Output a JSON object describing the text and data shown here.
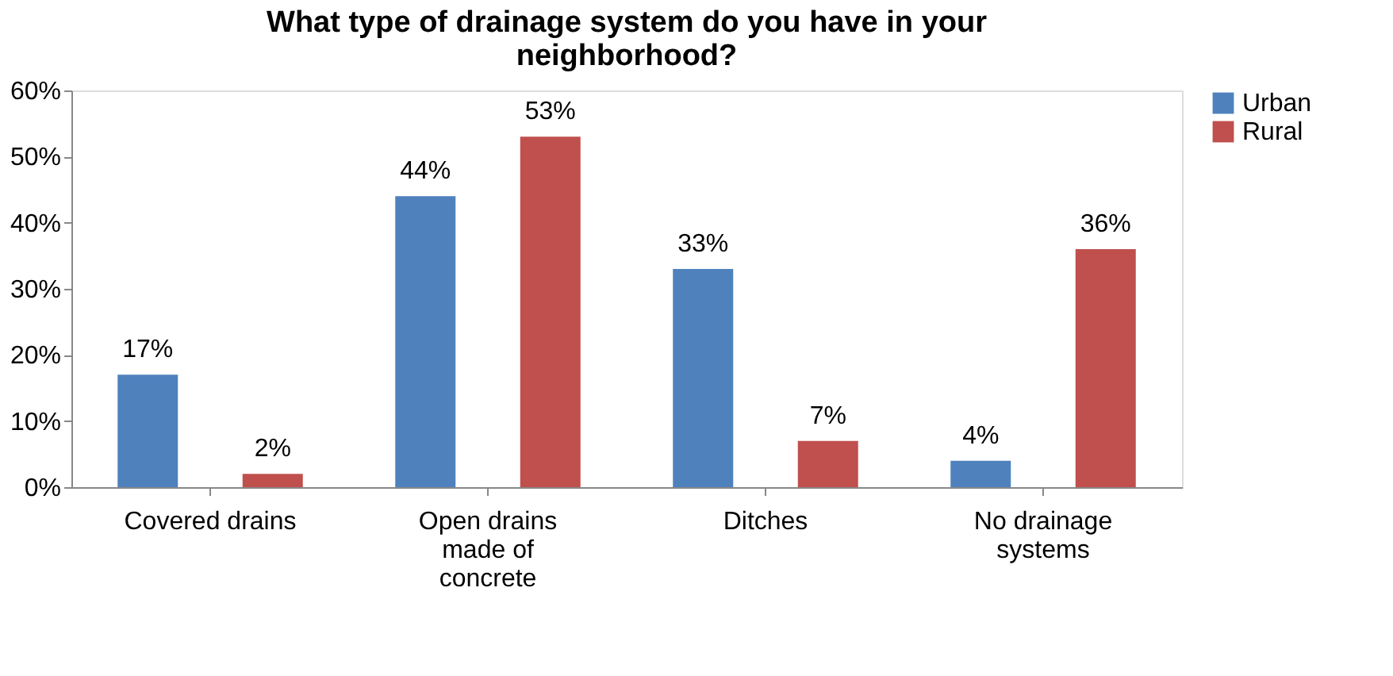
{
  "chart_data": {
    "type": "bar",
    "title": "What type of drainage system do you have in your neighborhood?",
    "categories": [
      "Covered drains",
      "Open drains made of concrete",
      "Ditches",
      "No drainage systems"
    ],
    "series": [
      {
        "name": "Urban",
        "color": "#4f81bd",
        "values": [
          17,
          44,
          33,
          4
        ]
      },
      {
        "name": "Rural",
        "color": "#c0504d",
        "values": [
          2,
          53,
          7,
          36
        ]
      }
    ],
    "ylim": [
      0,
      60
    ],
    "yticks": [
      {
        "value": 0,
        "label": "0%"
      },
      {
        "value": 10,
        "label": "10%"
      },
      {
        "value": 20,
        "label": "20%"
      },
      {
        "value": 30,
        "label": "30%"
      },
      {
        "value": 40,
        "label": "40%"
      },
      {
        "value": 50,
        "label": "50%"
      },
      {
        "value": 60,
        "label": "60%"
      }
    ],
    "value_labels": [
      [
        "17%",
        "44%",
        "33%",
        "4%"
      ],
      [
        "2%",
        "53%",
        "7%",
        "36%"
      ]
    ],
    "legend": "right",
    "grid": false
  }
}
